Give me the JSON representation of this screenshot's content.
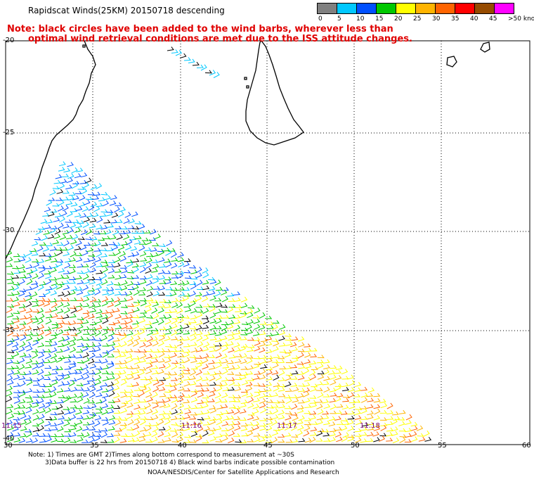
{
  "header": {
    "title": "Rapidscat Winds(25KM) 20150718 descending",
    "note_line1": "Note: black circles have been added to the wind barbs, wherever less than",
    "note_line2": "optimal wind retrieval conditions are met due to the ISS attitude changes."
  },
  "colorbar": {
    "labels": [
      "0",
      "5",
      "10",
      "15",
      "20",
      "25",
      "30",
      "35",
      "40",
      "45",
      ">50 knots"
    ],
    "colors": [
      "#808080",
      "#00c8ff",
      "#0050ff",
      "#00c800",
      "#ffff00",
      "#ffb400",
      "#ff6400",
      "#ff0000",
      "#964b00",
      "#ff00ff",
      "#8000c0"
    ]
  },
  "axes": {
    "lat_labels": [
      "-20",
      "-25",
      "-30",
      "-35",
      "-40"
    ],
    "lon_labels": [
      "30",
      "35",
      "40",
      "45",
      "50",
      "55",
      "60"
    ]
  },
  "time_labels": [
    "11:15",
    "11:16",
    "11:17",
    "11:18"
  ],
  "footer": {
    "line1": "Note: 1) Times are GMT 2)Times along bottom correspond to measurement at ~30S",
    "line2": "3)Data buffer is 22 hrs from 20150718 4) Black wind barbs indicate possible contamination",
    "line3": "NOAA/NESDIS/Center for Satellite Applications and Research"
  }
}
